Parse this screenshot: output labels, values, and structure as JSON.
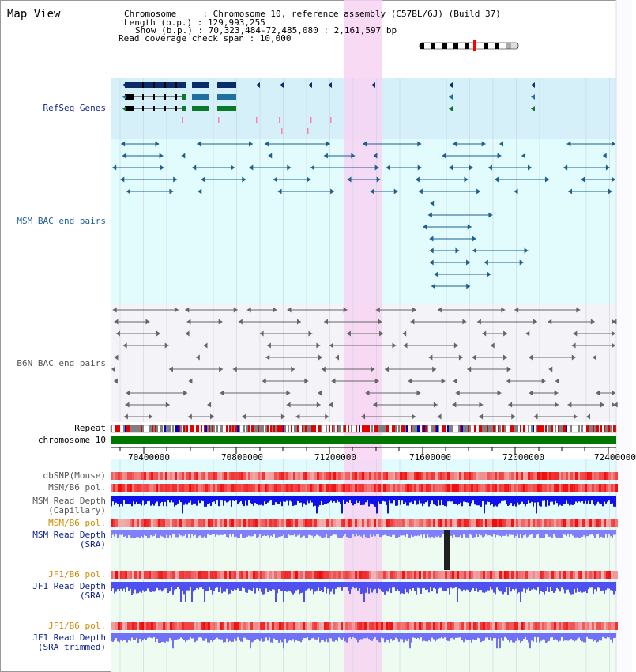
{
  "view": {
    "title": "Map View",
    "info_lines": [
      "Chromosome     : Chromosome 10, reference assembly (C57BL/6J) (Build 37)",
      "Length (b.p.) : 129,993,255",
      "Show (b.p.) : 70,323,484-72,485,080 : 2,161,597 bp",
      "Read coverage check span : 10,000"
    ]
  },
  "tracks": {
    "refseq": {
      "label": "RefSeq Genes",
      "color": "#0b1f8f"
    },
    "msm_bac": {
      "label": "MSM BAC end pairs",
      "color": "#1f5f8f"
    },
    "b6n_bac": {
      "label": "B6N BAC end pairs",
      "color": "#555555"
    },
    "repeat": {
      "label": "Repeat",
      "color": "#000000"
    },
    "chromosome": {
      "label": "chromosome 10",
      "color": "#000000"
    },
    "dbsnp": {
      "label": "dbSNP(Mouse)",
      "color": "#555555"
    },
    "msm_b6_pol_1": {
      "label": "MSM/B6 pol.",
      "color": "#555555"
    },
    "msm_depth_cap": {
      "label_lines": [
        "MSM Read Depth",
        "(Capillary)"
      ],
      "color": "#555555"
    },
    "msm_b6_pol_2": {
      "label": "MSM/B6 pol.",
      "color": "#d08a00"
    },
    "msm_depth_sra": {
      "label_lines": [
        "MSM Read Depth",
        "(SRA)"
      ],
      "color": "#0b1f8f"
    },
    "jf1_b6_pol_1": {
      "label": "JF1/B6 pol.",
      "color": "#d08a00"
    },
    "jf1_depth_sra": {
      "label_lines": [
        "JF1 Read Depth",
        "(SRA)"
      ],
      "color": "#0b1f8f"
    },
    "jf1_b6_pol_2": {
      "label": "JF1/B6 pol.",
      "color": "#d08a00"
    },
    "jf1_depth_trim": {
      "label_lines": [
        "JF1 Read Depth",
        "(SRA trimmed)"
      ],
      "color": "#0b1f8f"
    }
  },
  "axis": {
    "ticks": [
      "70400000",
      "70800000",
      "71200000",
      "71600000",
      "72000000",
      "72400000"
    ]
  },
  "colors": {
    "highlight": "#f7d4f2",
    "refseq_bg": "#d6f0fa",
    "msm_bg": "#e2fbfd",
    "b6n_bg": "#f4f4f8",
    "sra_bg": "#eefbf0",
    "chromosome_bar": "#007700"
  }
}
